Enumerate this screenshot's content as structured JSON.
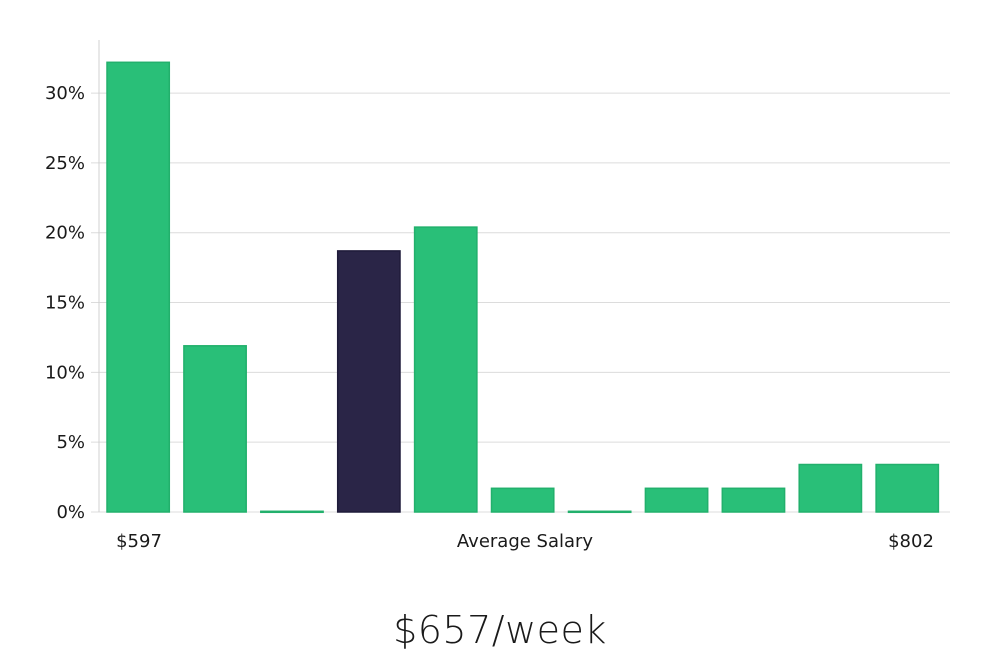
{
  "chart_data": {
    "type": "bar",
    "categories": [
      "$597",
      "",
      "",
      "",
      "",
      "",
      "",
      "",
      "",
      "",
      "$802"
    ],
    "values": [
      32.2,
      11.9,
      0.05,
      18.7,
      20.4,
      1.7,
      0.05,
      1.7,
      1.7,
      3.4,
      3.4
    ],
    "highlight_index": 3,
    "ylim": [
      0,
      33.8
    ],
    "yticks": [
      0,
      5,
      10,
      15,
      20,
      25,
      30
    ],
    "ytick_suffix": "%",
    "xlabel": "Average Salary",
    "x_left_label": "$597",
    "x_right_label": "$802",
    "grid": true,
    "colors": {
      "bar": "#29bf78",
      "bar_stroke": "#22b06c",
      "highlight": "#2a2547"
    }
  },
  "headline": "$657/week"
}
